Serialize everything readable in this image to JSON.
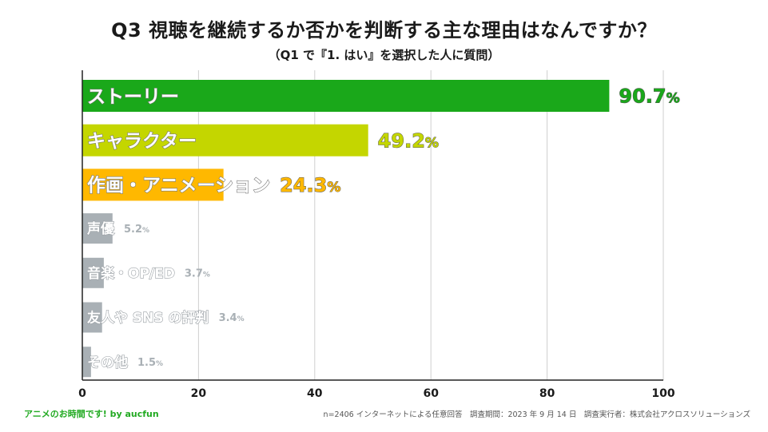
{
  "title": "Q3  視聴を継続するか否かを判断する主な理由はなんですか？",
  "subtitle": "（Q1 で『1. はい』を選択した人に質問）",
  "chart_data": {
    "type": "bar",
    "orientation": "horizontal",
    "categories": [
      "ストーリー",
      "キャラクター",
      "作画・アニメーション",
      "声優",
      "音楽・OP/ED",
      "友人や SNS の評判",
      "その他"
    ],
    "values": [
      90.7,
      49.2,
      24.3,
      5.2,
      3.7,
      3.4,
      1.5
    ],
    "value_labels": [
      "90.7%",
      "49.2%",
      "24.3%",
      "5.2%",
      "3.7%",
      "3.4%",
      "1.5%"
    ],
    "colors": [
      "#1aa81a",
      "#c4d600",
      "#ffb800",
      "#a9b0b5",
      "#a9b0b5",
      "#a9b0b5",
      "#a9b0b5"
    ],
    "xlim": [
      0,
      100
    ],
    "xticks": [
      "0",
      "20",
      "40",
      "60",
      "80",
      "100"
    ],
    "grid": true
  },
  "footer": {
    "brand": "アニメのお時間です! by aucfun",
    "note": "n=2406 インターネットによる任意回答　調査期間：2023 年 9 月 14 日　調査実行者：株式会社アクロスソリューションズ"
  }
}
